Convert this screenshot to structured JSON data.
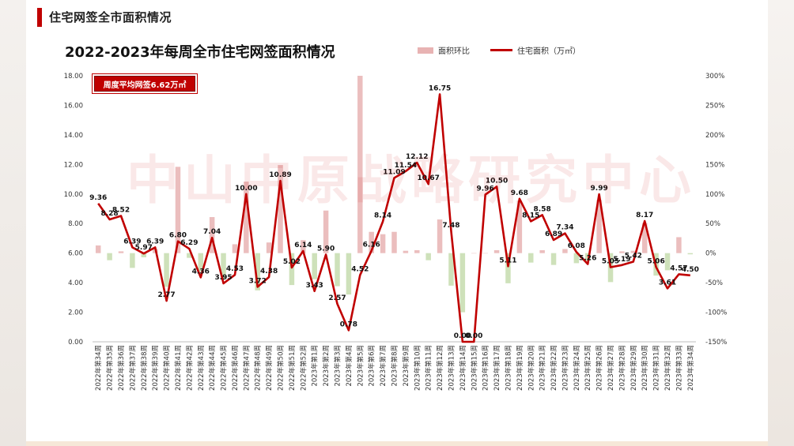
{
  "header": {
    "title": "住宅网签全市面积情况"
  },
  "watermark": "中山中原战略研究中心",
  "chart_data": {
    "type": "bar+line",
    "title": "2022-2023年每周全市住宅网签面积情况",
    "badge": "周度平均网签6.62万㎡",
    "legend": [
      "面积环比",
      "住宅面积（万㎡）"
    ],
    "y_left": {
      "min": 0,
      "max": 18,
      "step": 2,
      "ticks": [
        "0.00",
        "2.00",
        "4.00",
        "6.00",
        "8.00",
        "10.00",
        "12.00",
        "14.00",
        "16.00",
        "18.00"
      ]
    },
    "y_right": {
      "min": -150,
      "max": 300,
      "step": 50,
      "ticks": [
        "-150%",
        "-100%",
        "-50%",
        "0%",
        "50%",
        "100%",
        "150%",
        "200%",
        "250%",
        "300%"
      ]
    },
    "categories": [
      "2022年第34周",
      "2022年第35周",
      "2022年第36周",
      "2022年第37周",
      "2022年第38周",
      "2022年第39周",
      "2022年第40周",
      "2022年第41周",
      "2022年第42周",
      "2022年第43周",
      "2022年第44周",
      "2022年第45周",
      "2022年第46周",
      "2022年第47周",
      "2022年第48周",
      "2022年第49周",
      "2022年第50周",
      "2022年第51周",
      "2022年第52周",
      "2023年第1周",
      "2023年第2周",
      "2023年第3周",
      "2023年第4周",
      "2023年第5周",
      "2023年第6周",
      "2023年第7周",
      "2023年第8周",
      "2023年第9周",
      "2023年第10周",
      "2023年第11周",
      "2023年第12周",
      "2023年第13周",
      "2023年第14周",
      "2023年第15周",
      "2023年第16周",
      "2023年第17周",
      "2023年第18周",
      "2023年第19周",
      "2023年第20周",
      "2023年第21周",
      "2023年第22周",
      "2023年第23周",
      "2023年第24周",
      "2023年第25周",
      "2023年第26周",
      "2023年第27周",
      "2023年第28周",
      "2023年第29周",
      "2023年第30周",
      "2023年第31周",
      "2023年第32周",
      "2023年第33周",
      "2023年第34周"
    ],
    "series": [
      {
        "name": "住宅面积（万㎡）",
        "axis": "left",
        "color": "#c00000",
        "values": [
          9.36,
          8.28,
          8.52,
          6.39,
          5.97,
          6.39,
          2.77,
          6.8,
          6.29,
          4.36,
          7.04,
          3.95,
          4.53,
          10.0,
          3.72,
          4.38,
          10.89,
          5.02,
          6.14,
          3.43,
          5.9,
          2.57,
          0.78,
          4.52,
          6.16,
          8.14,
          11.09,
          11.54,
          12.12,
          10.67,
          16.75,
          7.48,
          0.0,
          0.0,
          9.96,
          10.5,
          5.11,
          9.68,
          8.15,
          8.58,
          6.89,
          7.34,
          6.08,
          5.26,
          9.99,
          5.05,
          5.19,
          5.42,
          8.17,
          5.06,
          3.61,
          4.57,
          4.5
        ]
      },
      {
        "name": "面积环比",
        "axis": "right",
        "color": "#e8b3b3",
        "neg_color": "#c5dcae",
        "values": [
          13,
          -12,
          3,
          -25,
          -7,
          7,
          -57,
          146,
          -8,
          -31,
          61,
          -44,
          15,
          121,
          -63,
          18,
          149,
          -54,
          22,
          -44,
          72,
          -56,
          -70,
          480,
          36,
          32,
          36,
          4,
          5,
          -12,
          57,
          -55,
          -100,
          0,
          0,
          5,
          -51,
          89,
          -16,
          5,
          -20,
          7,
          -17,
          -13,
          90,
          -49,
          3,
          4,
          51,
          -38,
          -29,
          27,
          -2
        ]
      }
    ]
  }
}
